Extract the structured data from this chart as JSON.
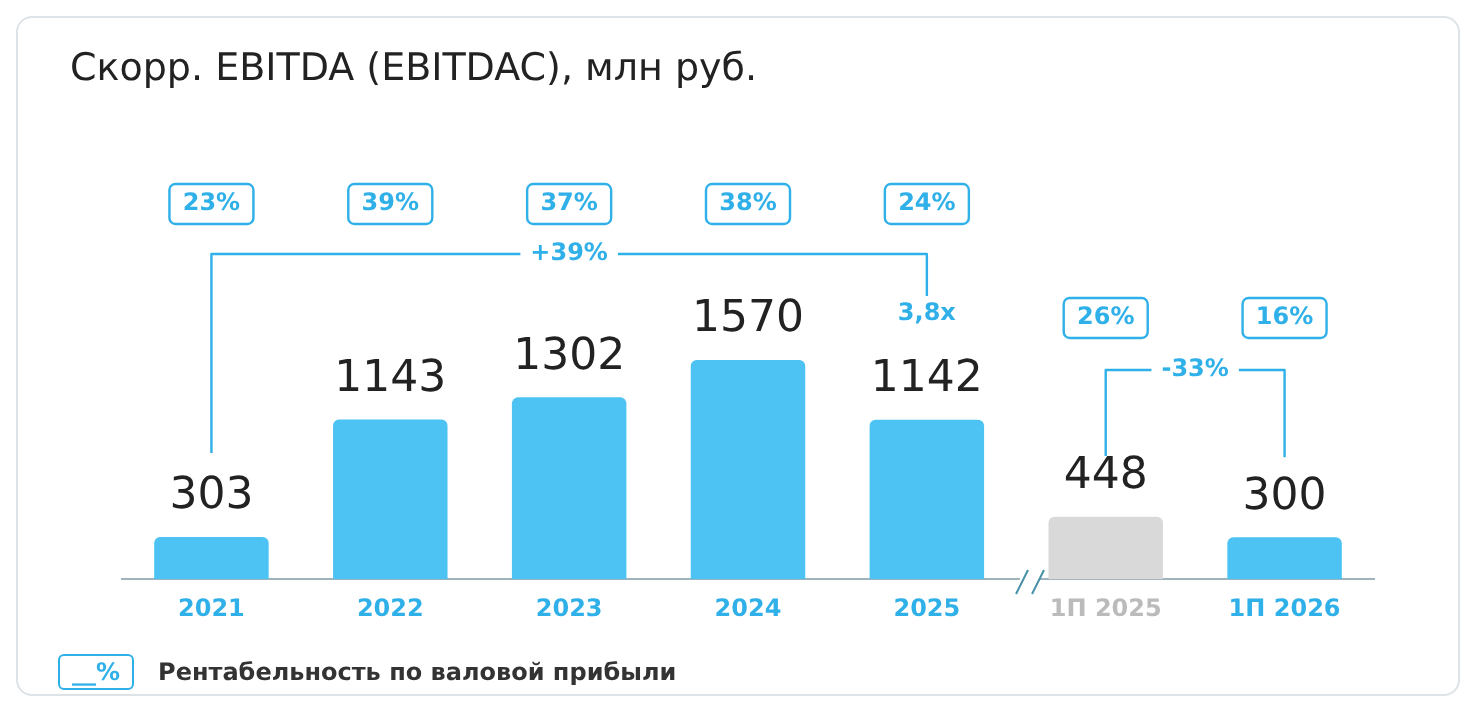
{
  "chart_data": {
    "type": "bar",
    "title": "Скорр. EBITDA (EBITDAC), млн руб.",
    "categories": [
      "2021",
      "2022",
      "2023",
      "2024",
      "2025",
      "1П 2025",
      "1П 2026"
    ],
    "values": [
      303,
      1143,
      1302,
      1570,
      1142,
      448,
      300
    ],
    "colors": [
      "#4cc3f2",
      "#4cc3f2",
      "#4cc3f2",
      "#4cc3f2",
      "#4cc3f2",
      "#d9d9d9",
      "#4cc3f2"
    ],
    "data_labels": true,
    "grid": false,
    "legend": false,
    "annotations": [
      "23%",
      "39%",
      "37%",
      "38%",
      "24%",
      "26%",
      "16%",
      "+39%",
      "3,8x",
      "-33%",
      "__%",
      "Рентабельность по валовой прибыли"
    ]
  }
}
